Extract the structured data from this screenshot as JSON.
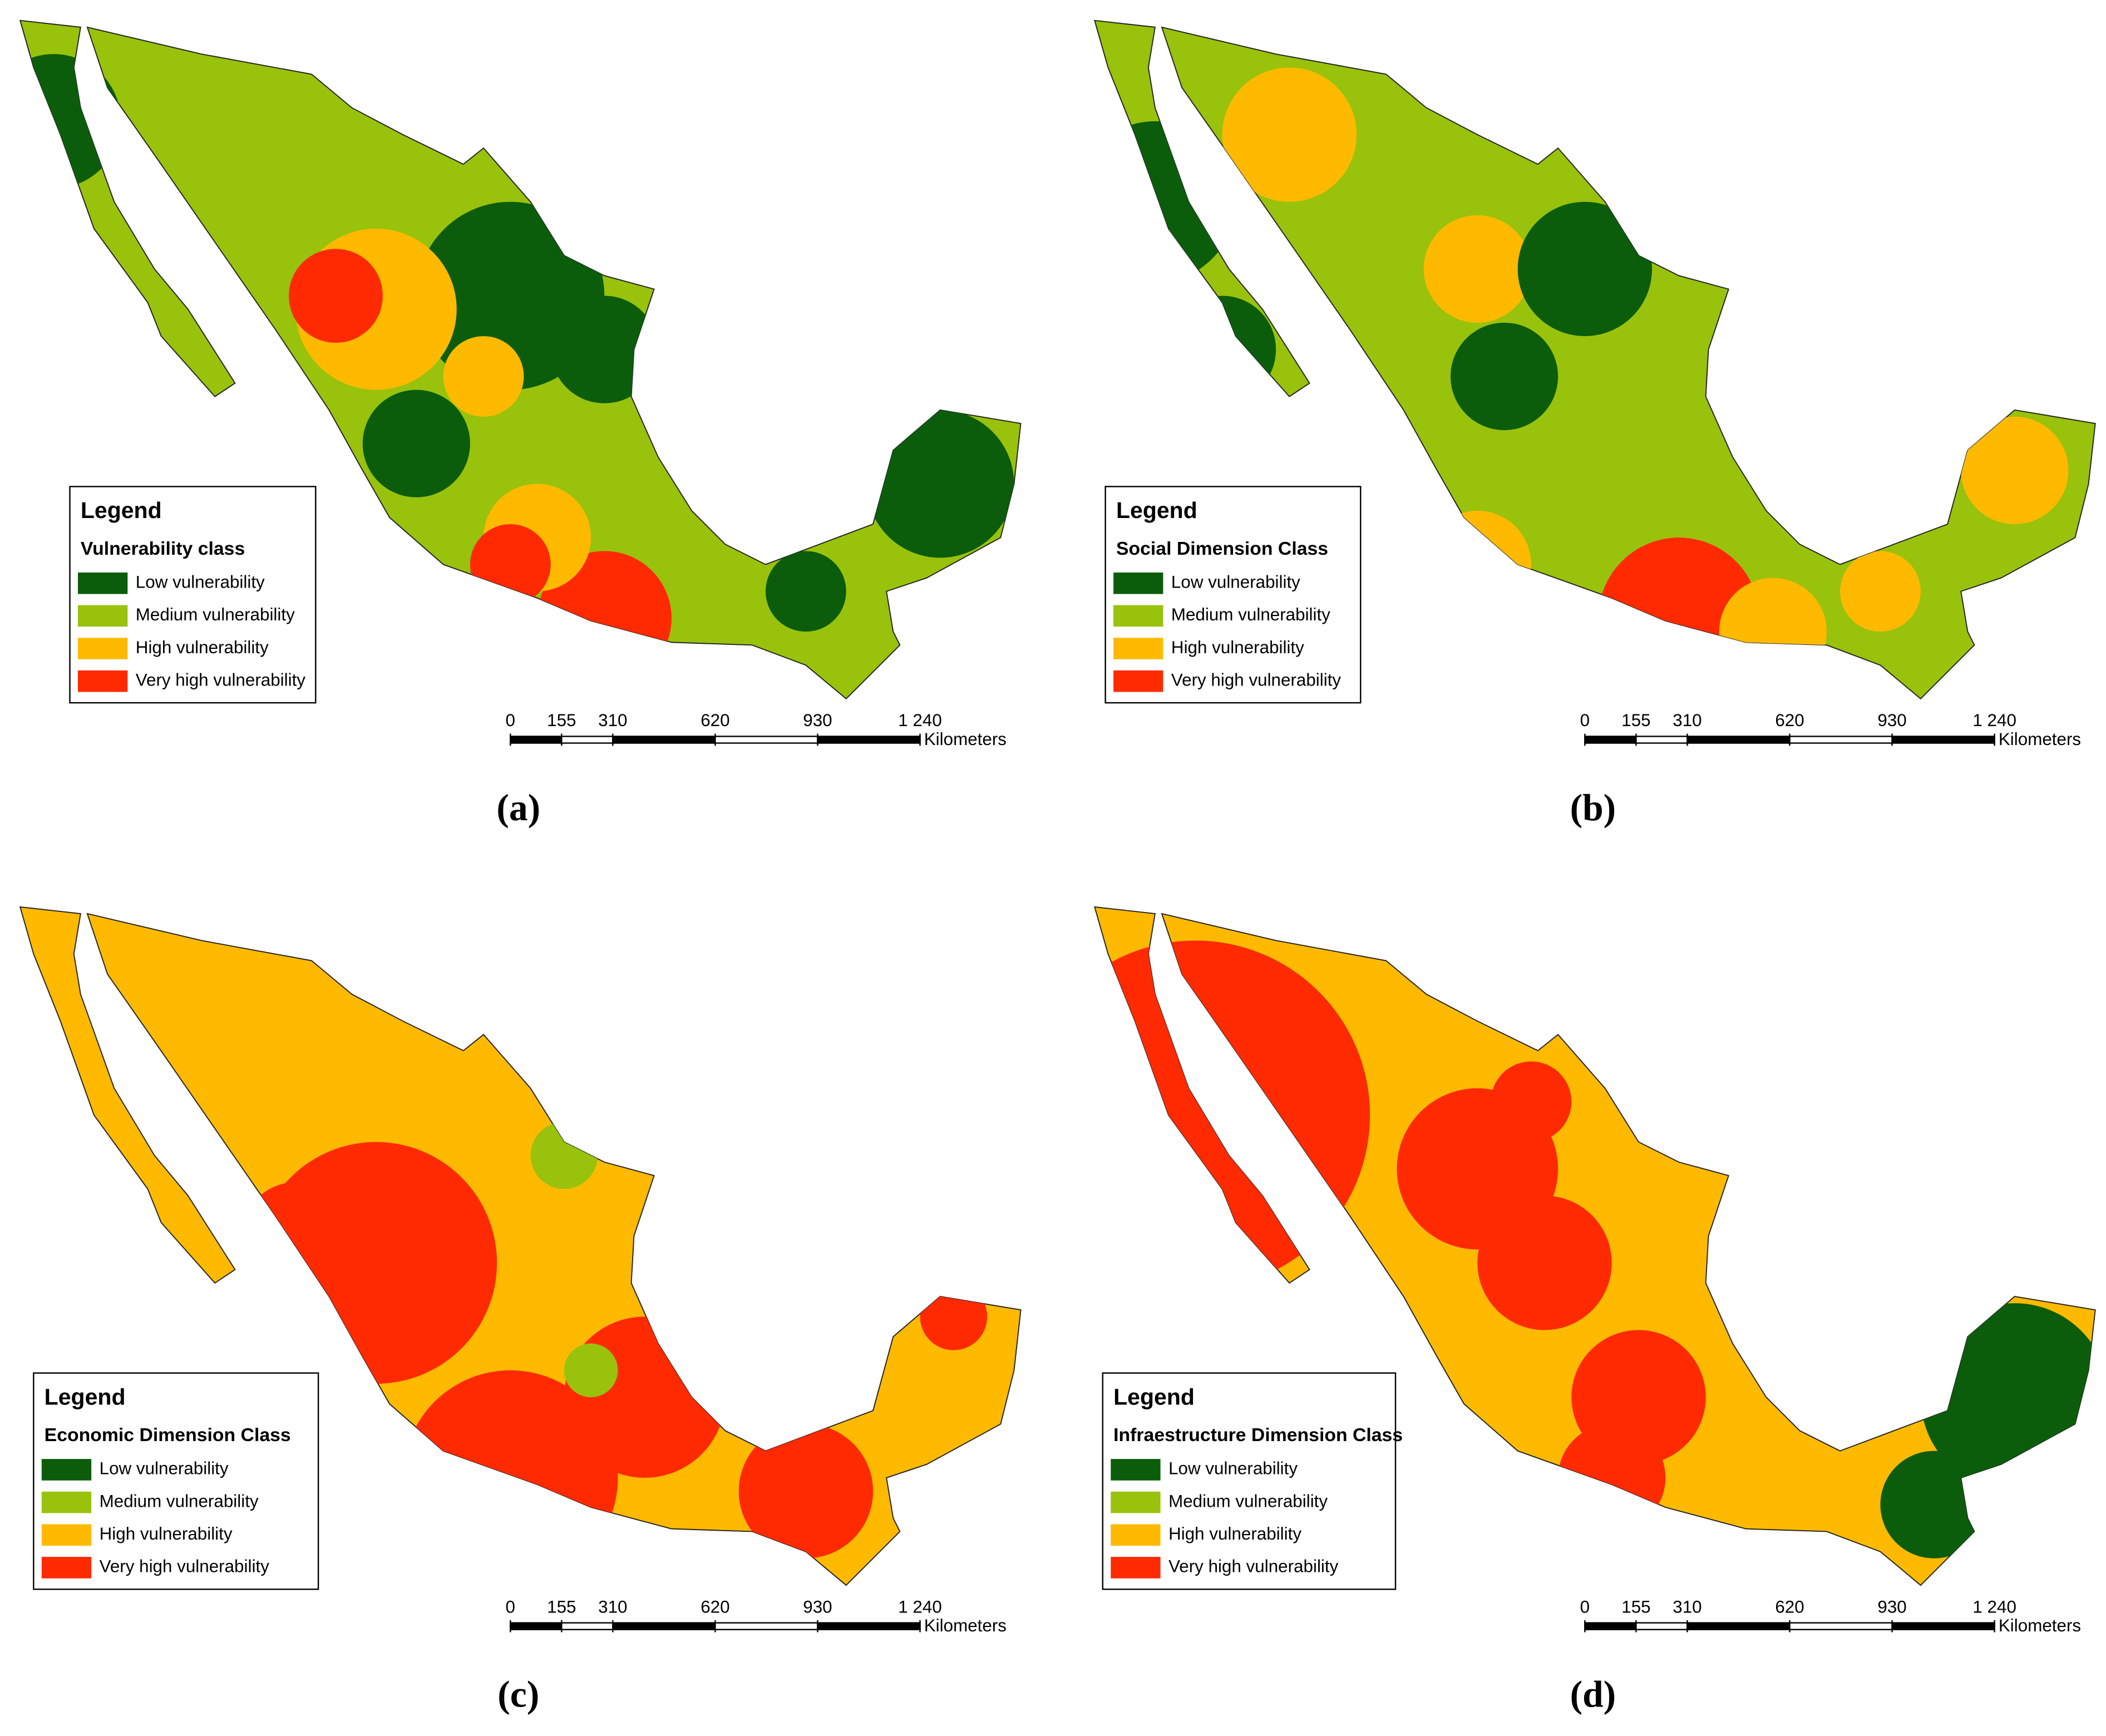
{
  "panels": [
    {
      "label": "(a)",
      "legend": {
        "title": "Legend",
        "class_title": "Vulnerability class",
        "items": [
          {
            "name": "Low vulnerability",
            "color": "#0b5d0b"
          },
          {
            "name": "Medium vulnerability",
            "color": "#99c20c"
          },
          {
            "name": "High vulnerability",
            "color": "#ffba00"
          },
          {
            "name": "Very high vulnerability",
            "color": "#ff2a00"
          }
        ]
      },
      "scale_bar": {
        "ticks": [
          0,
          155,
          310,
          620,
          930,
          {
            "value": 1240,
            "label": "1 240"
          }
        ],
        "unit": "Kilometers"
      }
    },
    {
      "label": "(b)",
      "legend": {
        "title": "Legend",
        "class_title": "Social Dimension Class",
        "items": [
          {
            "name": "Low vulnerability",
            "color": "#0b5d0b"
          },
          {
            "name": "Medium vulnerability",
            "color": "#99c20c"
          },
          {
            "name": "High vulnerability",
            "color": "#ffba00"
          },
          {
            "name": "Very high vulnerability",
            "color": "#ff2a00"
          }
        ]
      },
      "scale_bar": {
        "ticks": [
          0,
          155,
          310,
          620,
          930,
          {
            "value": 1240,
            "label": "1 240"
          }
        ],
        "unit": "Kilometers"
      }
    },
    {
      "label": "(c)",
      "legend": {
        "title": "Legend",
        "class_title": "Economic Dimension Class",
        "items": [
          {
            "name": "Low vulnerability",
            "color": "#0b5d0b"
          },
          {
            "name": "Medium vulnerability",
            "color": "#99c20c"
          },
          {
            "name": "High vulnerability",
            "color": "#ffba00"
          },
          {
            "name": "Very high vulnerability",
            "color": "#ff2a00"
          }
        ]
      },
      "scale_bar": {
        "ticks": [
          0,
          155,
          310,
          620,
          930,
          {
            "value": 1240,
            "label": "1 240"
          }
        ],
        "unit": "Kilometers"
      }
    },
    {
      "label": "(d)",
      "legend": {
        "title": "Legend",
        "class_title": "Infraestructure Dimension Class",
        "items": [
          {
            "name": "Low vulnerability",
            "color": "#0b5d0b"
          },
          {
            "name": "Medium vulnerability",
            "color": "#99c20c"
          },
          {
            "name": "High vulnerability",
            "color": "#ffba00"
          },
          {
            "name": "Very high vulnerability",
            "color": "#ff2a00"
          }
        ]
      },
      "scale_bar": {
        "ticks": [
          0,
          155,
          310,
          620,
          930,
          {
            "value": 1240,
            "label": "1 240"
          }
        ],
        "unit": "Kilometers"
      }
    }
  ]
}
